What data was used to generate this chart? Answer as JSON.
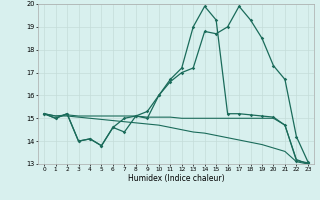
{
  "xlabel": "Humidex (Indice chaleur)",
  "x": [
    0,
    1,
    2,
    3,
    4,
    5,
    6,
    7,
    8,
    9,
    10,
    11,
    12,
    13,
    14,
    15,
    16,
    17,
    18,
    19,
    20,
    21,
    22,
    23
  ],
  "line1": [
    15.2,
    15.0,
    15.2,
    14.0,
    14.1,
    13.8,
    14.6,
    15.0,
    15.1,
    15.0,
    16.0,
    16.6,
    17.0,
    17.2,
    18.8,
    18.7,
    19.0,
    19.9,
    19.3,
    18.5,
    17.3,
    16.7,
    14.2,
    13.1
  ],
  "line2": [
    15.2,
    15.0,
    15.2,
    14.0,
    14.1,
    13.8,
    14.6,
    14.4,
    15.1,
    15.3,
    16.0,
    16.7,
    17.2,
    19.0,
    19.9,
    19.3,
    15.2,
    15.2,
    15.15,
    15.1,
    15.05,
    14.7,
    13.15,
    13.05
  ],
  "line3": [
    15.2,
    15.1,
    15.1,
    15.05,
    15.0,
    14.95,
    14.9,
    14.85,
    14.8,
    14.75,
    14.7,
    14.6,
    14.5,
    14.4,
    14.35,
    14.25,
    14.15,
    14.05,
    13.95,
    13.85,
    13.7,
    13.55,
    13.1,
    13.0
  ],
  "line4": [
    15.2,
    15.1,
    15.15,
    15.1,
    15.1,
    15.1,
    15.1,
    15.1,
    15.1,
    15.05,
    15.05,
    15.05,
    15.0,
    15.0,
    15.0,
    15.0,
    15.0,
    15.0,
    15.0,
    15.0,
    15.0,
    14.7,
    13.2,
    13.0
  ],
  "color": "#1a6b5a",
  "bg_color": "#d8f0ee",
  "grid_color": "#c4ddd9",
  "ylim": [
    13,
    20
  ],
  "yticks": [
    13,
    14,
    15,
    16,
    17,
    18,
    19,
    20
  ]
}
